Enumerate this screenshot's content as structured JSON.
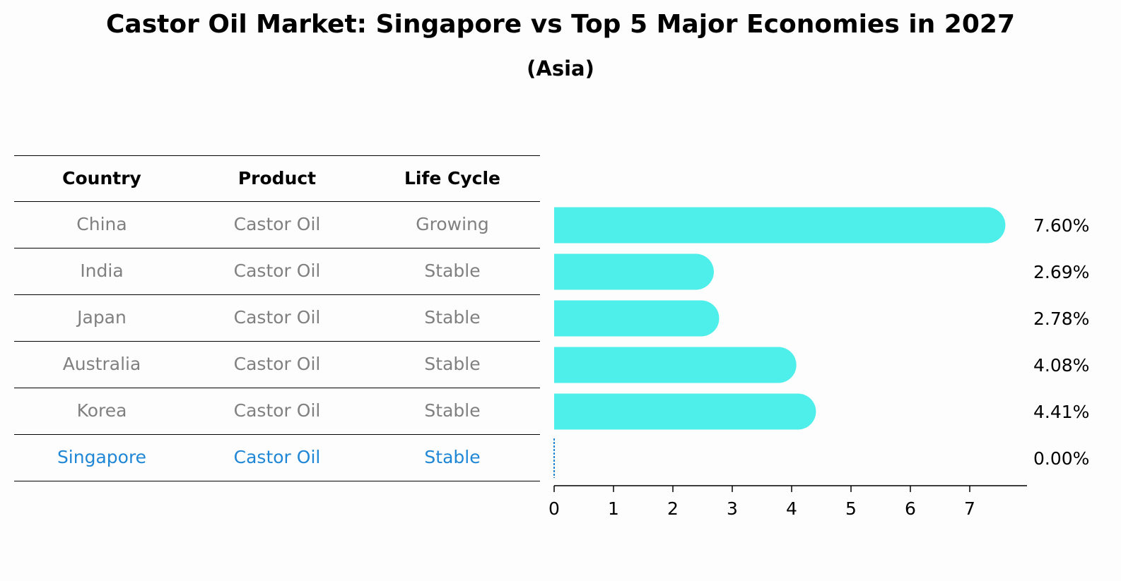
{
  "title": "Castor Oil Market: Singapore vs Top 5 Major Economies in 2027",
  "subtitle": "(Asia)",
  "table": {
    "headers": [
      "Country",
      "Product",
      "Life Cycle"
    ],
    "rows": [
      {
        "country": "China",
        "product": "Castor Oil",
        "life_cycle": "Growing",
        "highlight": false
      },
      {
        "country": "India",
        "product": "Castor Oil",
        "life_cycle": "Stable",
        "highlight": false
      },
      {
        "country": "Japan",
        "product": "Castor Oil",
        "life_cycle": "Stable",
        "highlight": false
      },
      {
        "country": "Australia",
        "product": "Castor Oil",
        "life_cycle": "Stable",
        "highlight": false
      },
      {
        "country": "Korea",
        "product": "Castor Oil",
        "life_cycle": "Stable",
        "highlight": false
      },
      {
        "country": "Singapore",
        "product": "Castor Oil",
        "life_cycle": "Stable",
        "highlight": true
      }
    ]
  },
  "colors": {
    "bar": "#4eeeeb",
    "highlight": "#1f87d6",
    "muted_text": "#808080"
  },
  "chart_data": {
    "type": "bar",
    "orientation": "horizontal",
    "categories": [
      "China",
      "India",
      "Japan",
      "Australia",
      "Korea",
      "Singapore"
    ],
    "values": [
      7.6,
      2.69,
      2.78,
      4.08,
      4.41,
      0.0
    ],
    "value_labels": [
      "7.60%",
      "2.69%",
      "2.78%",
      "4.08%",
      "4.41%",
      "0.00%"
    ],
    "xlim": [
      0,
      8
    ],
    "xticks": [
      0,
      1,
      2,
      3,
      4,
      5,
      6,
      7
    ],
    "grid": false
  }
}
